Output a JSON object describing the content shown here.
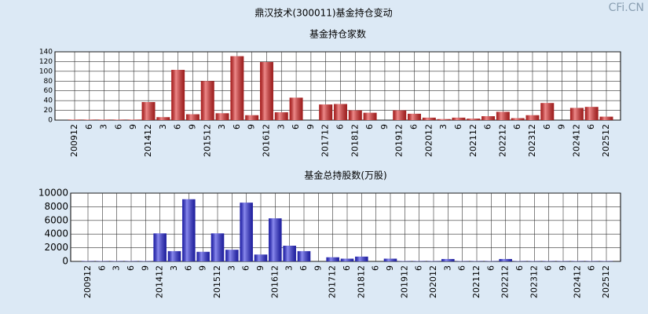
{
  "title": "鼎汉技术(300011)基金持仓变动",
  "watermark": "CFi.CN",
  "chart_data": [
    {
      "type": "bar",
      "title": "基金持仓家数",
      "categories": [
        "200912",
        "6",
        "3",
        "6",
        "9",
        "201412",
        "3",
        "6",
        "9",
        "201512",
        "3",
        "6",
        "9",
        "201612",
        "3",
        "6",
        "9",
        "201712",
        "6",
        "201812",
        "6",
        "9",
        "201912",
        "6",
        "202012",
        "3",
        "6",
        "202112",
        "6",
        "202212",
        "6",
        "202312",
        "6",
        "9",
        "202412",
        "6",
        "202512"
      ],
      "values": [
        1,
        1,
        1,
        1,
        1,
        37,
        6,
        103,
        12,
        80,
        14,
        131,
        10,
        119,
        16,
        46,
        0,
        32,
        33,
        20,
        15,
        0,
        20,
        13,
        5,
        2,
        5,
        3,
        8,
        17,
        4,
        10,
        35,
        0,
        25,
        27,
        7
      ],
      "color": "#e02828",
      "ylim": [
        0,
        140
      ],
      "yticks": [
        0,
        20,
        40,
        60,
        80,
        100,
        120,
        140
      ],
      "grid": true
    },
    {
      "type": "bar",
      "title": "基金总持股数(万股)",
      "categories": [
        "200912",
        "6",
        "3",
        "6",
        "9",
        "201412",
        "3",
        "6",
        "9",
        "201512",
        "3",
        "6",
        "9",
        "201612",
        "3",
        "6",
        "9",
        "201712",
        "6",
        "201812",
        "6",
        "9",
        "201912",
        "6",
        "202012",
        "3",
        "6",
        "202112",
        "6",
        "202212",
        "6",
        "202312",
        "6",
        "9",
        "202412",
        "6",
        "202512"
      ],
      "values": [
        50,
        50,
        50,
        50,
        50,
        4100,
        1500,
        9100,
        1400,
        4100,
        1700,
        8600,
        1000,
        6300,
        2300,
        1500,
        0,
        600,
        400,
        700,
        0,
        400,
        50,
        50,
        50,
        350,
        50,
        50,
        50,
        350,
        50,
        50,
        50,
        50,
        50,
        50,
        50
      ],
      "color": "#2a2ae0",
      "ylim": [
        0,
        10000
      ],
      "yticks": [
        0,
        2000,
        4000,
        6000,
        8000,
        10000
      ],
      "grid": true
    }
  ]
}
